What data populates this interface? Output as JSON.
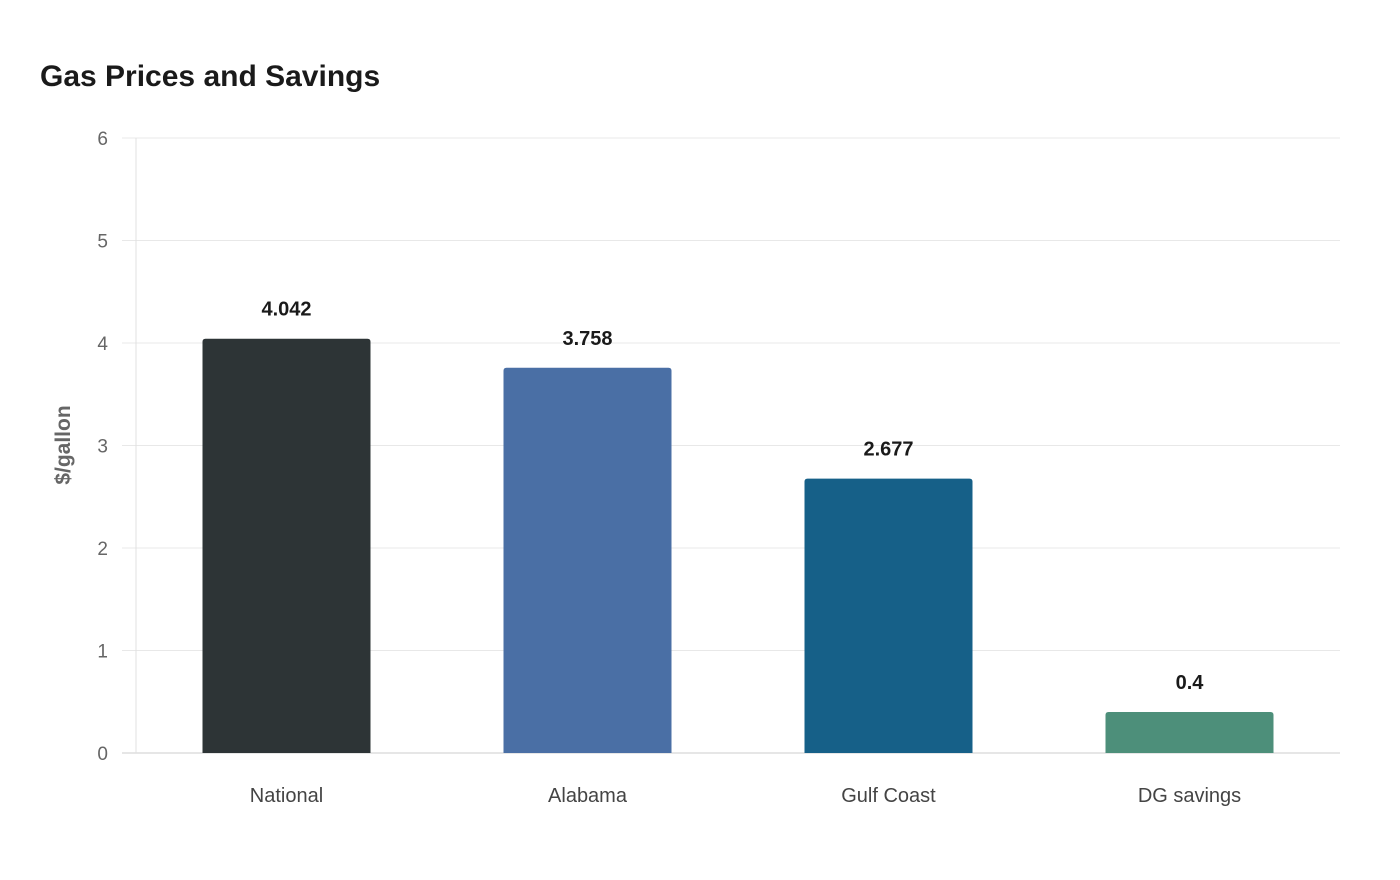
{
  "chart_data": {
    "type": "bar",
    "title": "Gas Prices and Savings",
    "xlabel": "",
    "ylabel": "$/gallon",
    "categories": [
      "National",
      "Alabama",
      "Gulf Coast",
      "DG savings"
    ],
    "values": [
      4.042,
      3.758,
      2.677,
      0.4
    ],
    "data_labels": [
      "4.042",
      "3.758",
      "2.677",
      "0.4"
    ],
    "colors": [
      "#2d3436",
      "#4a6fa5",
      "#166088",
      "#4d8f7a"
    ],
    "ylim": [
      0,
      6
    ],
    "yticks": [
      0,
      1,
      2,
      3,
      4,
      5,
      6
    ],
    "grid": true,
    "legend": "none"
  }
}
